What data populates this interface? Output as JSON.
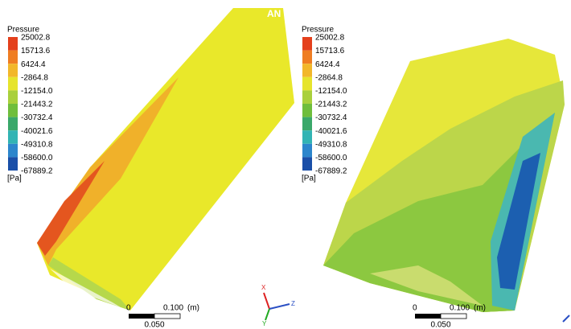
{
  "watermark": "AN",
  "panels": [
    {
      "legend": {
        "title": "Pressure",
        "levels": [
          "25002.8",
          "15713.6",
          "6424.4",
          "-2864.8",
          "-12154.0",
          "-21443.2",
          "-30732.4",
          "-40021.6",
          "-49310.8",
          "-58600.0",
          "-67889.2"
        ],
        "unit": "[Pa]"
      },
      "scale": {
        "start": "0",
        "end": "0.100",
        "unit": "(m)",
        "mid": "0.050"
      }
    },
    {
      "legend": {
        "title": "Pressure",
        "levels": [
          "25002.8",
          "15713.6",
          "6424.4",
          "-2864.8",
          "-12154.0",
          "-21443.2",
          "-30732.4",
          "-40021.6",
          "-49310.8",
          "-58600.0",
          "-67889.2"
        ],
        "unit": "[Pa]"
      },
      "scale": {
        "start": "0",
        "end": "0.100",
        "unit": "(m)",
        "mid": "0.050"
      }
    }
  ],
  "axes": {
    "x": "X",
    "y": "Y",
    "z": "Z"
  }
}
